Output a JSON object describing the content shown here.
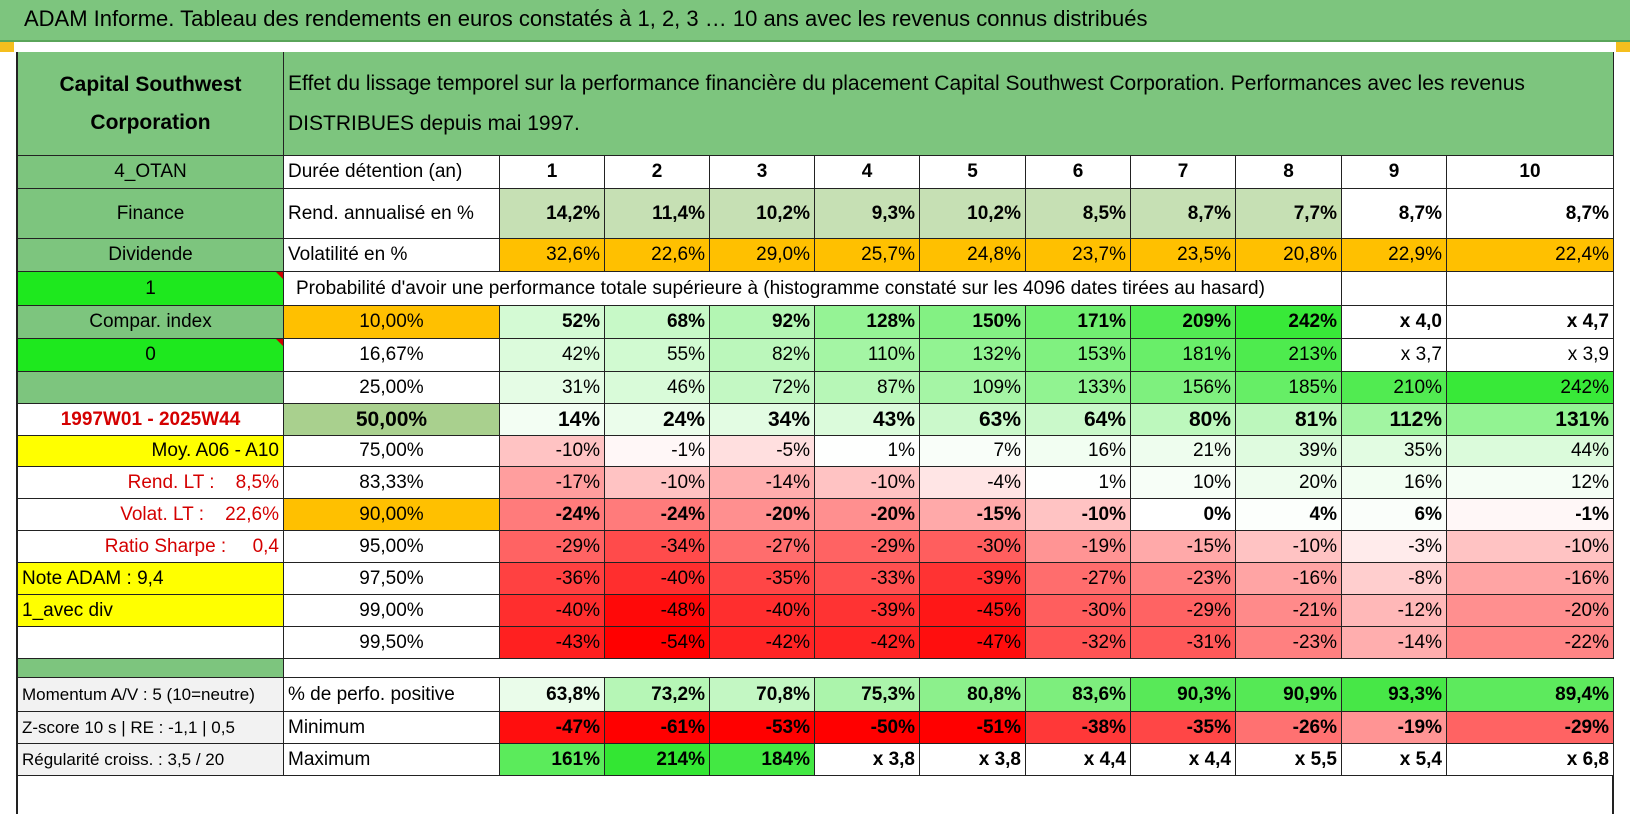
{
  "header": {
    "title": "ADAM Informe. Tableau des rendements en euros constatés à 1, 2, 3 … 10 ans avec les revenus connus distribués"
  },
  "sidebar": {
    "company": "Capital Southwest Corporation",
    "code": "4_OTAN",
    "sector": "Finance",
    "type": "Dividende",
    "flag1": "1",
    "compar_index": "Compar. index",
    "flag2": "0",
    "period": "1997W01 - 2025W44",
    "moy": "Moy. A06 - A10",
    "rend_lt": "Rend. LT :    8,5%",
    "volat_lt": "Volat. LT :    22,6%",
    "sharpe": "Ratio Sharpe :     0,4",
    "note": "Note ADAM : 9,4",
    "avec_div": "1_avec div",
    "momentum": "Momentum A/V : 5 (10=neutre)",
    "zscore": "Z-score 10 s | RE : -1,1 | 0,5",
    "regularite": "Régularité croiss. : 3,5 / 20"
  },
  "description": "Effet du lissage temporel sur la performance financière du placement Capital Southwest Corporation. Performances avec les revenus DISTRIBUES depuis mai 1997.",
  "stats": {
    "durations_label": "Durée détention (an)",
    "durations": [
      "1",
      "2",
      "3",
      "4",
      "5",
      "6",
      "7",
      "8",
      "9",
      "10"
    ],
    "rend_label": "Rend. annualisé en %",
    "rend": [
      "14,2%",
      "11,4%",
      "10,2%",
      "9,3%",
      "10,2%",
      "8,5%",
      "8,7%",
      "7,7%",
      "8,7%",
      "8,7%"
    ],
    "vol_label": "Volatilité en %",
    "vol": [
      "32,6%",
      "22,6%",
      "29,0%",
      "25,7%",
      "24,8%",
      "23,7%",
      "23,5%",
      "20,8%",
      "22,9%",
      "22,4%"
    ]
  },
  "probability_title": "Probabilité d'avoir une performance totale supérieure à (histogramme constaté sur les 4096 dates tirées au hasard)",
  "quantiles": [
    {
      "label": "10,00%",
      "values": [
        "52%",
        "68%",
        "92%",
        "128%",
        "150%",
        "171%",
        "209%",
        "242%",
        "x 4,0",
        "x 4,7"
      ]
    },
    {
      "label": "16,67%",
      "values": [
        "42%",
        "55%",
        "82%",
        "110%",
        "132%",
        "153%",
        "181%",
        "213%",
        "x 3,7",
        "x 3,9"
      ]
    },
    {
      "label": "25,00%",
      "values": [
        "31%",
        "46%",
        "72%",
        "87%",
        "109%",
        "133%",
        "156%",
        "185%",
        "210%",
        "242%"
      ]
    },
    {
      "label": "50,00%",
      "values": [
        "14%",
        "24%",
        "34%",
        "43%",
        "63%",
        "64%",
        "80%",
        "81%",
        "112%",
        "131%"
      ]
    },
    {
      "label": "75,00%",
      "values": [
        "-10%",
        "-1%",
        "-5%",
        "1%",
        "7%",
        "16%",
        "21%",
        "39%",
        "35%",
        "44%"
      ]
    },
    {
      "label": "83,33%",
      "values": [
        "-17%",
        "-10%",
        "-14%",
        "-10%",
        "-4%",
        "1%",
        "10%",
        "20%",
        "16%",
        "12%"
      ]
    },
    {
      "label": "90,00%",
      "values": [
        "-24%",
        "-24%",
        "-20%",
        "-20%",
        "-15%",
        "-10%",
        "0%",
        "4%",
        "6%",
        "-1%"
      ]
    },
    {
      "label": "95,00%",
      "values": [
        "-29%",
        "-34%",
        "-27%",
        "-29%",
        "-30%",
        "-19%",
        "-15%",
        "-10%",
        "-3%",
        "-10%"
      ]
    },
    {
      "label": "97,50%",
      "values": [
        "-36%",
        "-40%",
        "-35%",
        "-33%",
        "-39%",
        "-27%",
        "-23%",
        "-16%",
        "-8%",
        "-16%"
      ]
    },
    {
      "label": "99,00%",
      "values": [
        "-40%",
        "-48%",
        "-40%",
        "-39%",
        "-45%",
        "-30%",
        "-29%",
        "-21%",
        "-12%",
        "-20%"
      ]
    },
    {
      "label": "99,50%",
      "values": [
        "-43%",
        "-54%",
        "-42%",
        "-42%",
        "-47%",
        "-32%",
        "-31%",
        "-23%",
        "-14%",
        "-22%"
      ]
    }
  ],
  "bottom": [
    {
      "label": "% de perfo. positive",
      "values": [
        "63,8%",
        "73,2%",
        "70,8%",
        "75,3%",
        "80,8%",
        "83,6%",
        "90,3%",
        "90,9%",
        "93,3%",
        "89,4%"
      ]
    },
    {
      "label": "Minimum",
      "values": [
        "-47%",
        "-61%",
        "-53%",
        "-50%",
        "-51%",
        "-38%",
        "-35%",
        "-26%",
        "-19%",
        "-29%"
      ]
    },
    {
      "label": "Maximum",
      "values": [
        "161%",
        "214%",
        "184%",
        "x 3,8",
        "x 3,8",
        "x 4,4",
        "x 4,4",
        "x 5,5",
        "x 5,4",
        "x 6,8"
      ]
    }
  ],
  "colors": {
    "header_green": "#7dc57e",
    "sidebar_green": "#8fd18f",
    "bright_green": "#1ee81e",
    "yellow": "#ffff00",
    "orange": "#ffc000",
    "rend_green": "#c6e0b4",
    "median_green": "#a9d08e",
    "red_text": "#d40000"
  }
}
